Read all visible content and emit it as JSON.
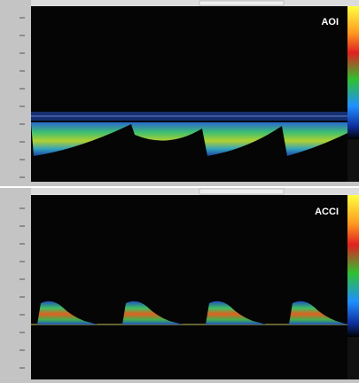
{
  "panels": [
    {
      "label": "AOI"
    },
    {
      "label": "ACCI"
    }
  ]
}
